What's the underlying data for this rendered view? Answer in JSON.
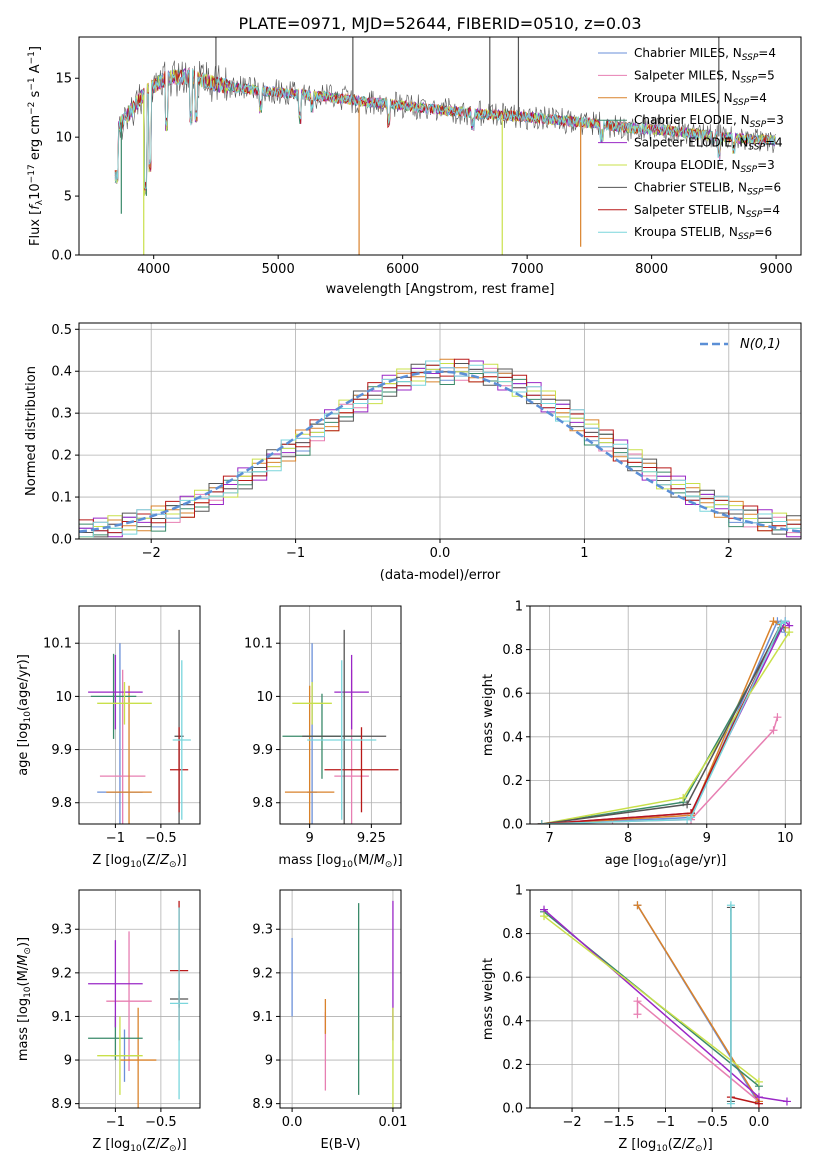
{
  "figure": {
    "title": "PLATE=0971, MJD=52644, FIBERID=0510, z=0.03"
  },
  "series_names": [
    "Chabrier MILES, N_SSP=4",
    "Salpeter MILES, N_SSP=5",
    "Kroupa MILES, N_SSP=4",
    "Chabrier ELODIE, N_SSP=3",
    "Salpeter ELODIE, N_SSP=4",
    "Kroupa ELODIE, N_SSP=3",
    "Chabrier STELIB, N_SSP=6",
    "Salpeter STELIB, N_SSP=4",
    "Kroupa STELIB, N_SSP=6"
  ],
  "colors": {
    "series": [
      "#6a8fd8",
      "#e77fb2",
      "#d9822b",
      "#3a8a6a",
      "#9a27c6",
      "#c9e04a",
      "#555555",
      "#b81818",
      "#7ad6dc"
    ],
    "gaussian": "#5b8fd6",
    "grid": "#b0b0b0"
  },
  "chart_data": [
    {
      "id": "spectrum",
      "type": "line",
      "title": "PLATE=0971, MJD=52644, FIBERID=0510, z=0.03",
      "xlabel": "wavelength [Angstrom, rest frame]",
      "ylabel": "Flux [f_λ10^-17 erg cm^-2 s^-1 A^-1]",
      "xlim": [
        3400,
        9200
      ],
      "ylim": [
        0,
        18.5
      ],
      "xticks": [
        4000,
        5000,
        6000,
        7000,
        8000,
        9000
      ],
      "yticks": [
        0,
        5,
        10,
        15
      ],
      "grid": false,
      "legend": "top-right",
      "legend_entries": [
        "Chabrier MILES, N_SSP=4",
        "Salpeter MILES, N_SSP=5",
        "Kroupa MILES, N_SSP=4",
        "Chabrier ELODIE, N_SSP=3",
        "Salpeter ELODIE, N_SSP=4",
        "Kroupa ELODIE, N_SSP=3",
        "Chabrier STELIB, N_SSP=6",
        "Salpeter STELIB, N_SSP=4",
        "Kroupa STELIB, N_SSP=6"
      ],
      "continuum": {
        "x": [
          3680,
          3800,
          3950,
          4100,
          4300,
          4500,
          4800,
          5100,
          5400,
          5700,
          6000,
          6300,
          6600,
          6900,
          7200,
          7500,
          7800,
          8100,
          8400,
          8700,
          9000
        ],
        "y": [
          10.5,
          12.0,
          14.0,
          15.0,
          15.2,
          14.5,
          14.0,
          13.7,
          13.4,
          13.0,
          12.7,
          12.3,
          12.0,
          11.8,
          11.5,
          11.2,
          10.8,
          10.6,
          10.2,
          9.9,
          9.7
        ]
      },
      "features": [
        {
          "x": 3700,
          "y": 6.0
        },
        {
          "x": 3935,
          "y": 5.0
        },
        {
          "x": 3970,
          "y": 7.0
        },
        {
          "x": 4101,
          "y": 10.5
        },
        {
          "x": 4300,
          "y": 11.0
        },
        {
          "x": 4340,
          "y": 11.2
        },
        {
          "x": 4861,
          "y": 12.0
        },
        {
          "x": 5175,
          "y": 11.0
        },
        {
          "x": 5270,
          "y": 12.0
        },
        {
          "x": 5890,
          "y": 10.8
        },
        {
          "x": 6563,
          "y": 10.5
        },
        {
          "x": 7600,
          "y": 9.5
        },
        {
          "x": 8500,
          "y": 8.8
        },
        {
          "x": 8542,
          "y": 8.0
        },
        {
          "x": 8662,
          "y": 8.5
        }
      ],
      "spikes": [
        {
          "x": 3920,
          "y": 0,
          "series": 5
        },
        {
          "x": 5650,
          "y": 0,
          "series": 2
        },
        {
          "x": 6800,
          "y": 0,
          "series": 5
        },
        {
          "x": 7430,
          "y": 0.7,
          "series": 2
        },
        {
          "x": 4500,
          "y": 18.5,
          "series": 6
        },
        {
          "x": 5600,
          "y": 18.5,
          "series": 6
        },
        {
          "x": 6700,
          "y": 18.5,
          "series": 6
        },
        {
          "x": 6930,
          "y": 18.5,
          "series": 6
        },
        {
          "x": 8540,
          "y": 18.5,
          "series": 6
        },
        {
          "x": 3740,
          "y": 3.5,
          "series": 3
        }
      ]
    },
    {
      "id": "residuals",
      "type": "histogram",
      "xlabel": "(data-model)/error",
      "ylabel": "Normed distribution",
      "xlim": [
        -2.5,
        2.5
      ],
      "ylim": [
        0,
        0.515
      ],
      "xticks": [
        -2,
        -1,
        0,
        1,
        2
      ],
      "yticks": [
        0.0,
        0.1,
        0.2,
        0.3,
        0.4,
        0.5
      ],
      "grid": true,
      "legend": "top-right",
      "legend_entry": "N(0,1)",
      "bin_edges_start": -2.5,
      "bin_width": 0.1,
      "series": [
        {
          "offsets": [
            0.01,
            0.0,
            -0.01,
            0.02,
            0.01,
            -0.02,
            0.0,
            0.01,
            -0.01,
            0.02
          ]
        },
        {
          "offsets": [
            0.0,
            0.02,
            0.01,
            -0.01,
            0.03,
            0.0,
            -0.02,
            0.01,
            0.02,
            -0.01
          ]
        },
        {
          "offsets": [
            -0.01,
            0.01,
            0.02,
            0.0,
            -0.02,
            0.03,
            0.01,
            -0.01,
            0.0,
            0.02
          ]
        },
        {
          "offsets": [
            0.02,
            -0.01,
            0.0,
            0.01,
            0.02,
            -0.03,
            0.02,
            0.0,
            -0.01,
            0.01
          ]
        },
        {
          "offsets": [
            0.01,
            0.03,
            -0.02,
            0.02,
            0.0,
            0.01,
            -0.01,
            0.03,
            0.01,
            -0.02
          ]
        },
        {
          "offsets": [
            -0.02,
            0.01,
            0.03,
            -0.01,
            0.01,
            0.02,
            0.0,
            -0.02,
            0.03,
            0.0
          ]
        },
        {
          "offsets": [
            0.0,
            -0.02,
            0.01,
            0.03,
            -0.01,
            0.0,
            0.02,
            0.01,
            -0.02,
            0.03
          ]
        },
        {
          "offsets": [
            0.03,
            0.0,
            -0.01,
            0.01,
            0.02,
            -0.01,
            0.03,
            -0.02,
            0.0,
            0.01
          ]
        },
        {
          "offsets": [
            -0.01,
            0.02,
            0.0,
            -0.02,
            0.03,
            0.01,
            -0.01,
            0.02,
            0.01,
            0.0
          ]
        }
      ]
    },
    {
      "id": "age-vs-Z",
      "type": "scatter",
      "xlabel": "Z [log10(Z/Z⊙)]",
      "ylabel": "age [log10(age/yr)]",
      "xlim": [
        -1.4,
        -0.07
      ],
      "ylim": [
        9.76,
        10.17
      ],
      "xticks": [
        -1.0,
        -0.5
      ],
      "yticks": [
        9.8,
        9.9,
        10.0,
        10.1
      ],
      "grid": true,
      "points": [
        {
          "x": -0.95,
          "y": 9.82,
          "xerr": 0.25,
          "yerr": 0.28
        },
        {
          "x": -0.92,
          "y": 9.85,
          "xerr": 0.25,
          "yerr": 0.2
        },
        {
          "x": -0.85,
          "y": 9.82,
          "xerr": 0.25,
          "yerr": 0.2
        },
        {
          "x": -1.02,
          "y": 10.0,
          "xerr": 0.25,
          "yerr": 0.08
        },
        {
          "x": -1.0,
          "y": 10.008,
          "xerr": 0.3,
          "yerr": 0.07
        },
        {
          "x": -0.9,
          "y": 9.987,
          "xerr": 0.3,
          "yerr": 0.04
        },
        {
          "x": -0.3,
          "y": 9.925,
          "xerr": 0.05,
          "yerr": 0.2
        },
        {
          "x": -0.3,
          "y": 9.862,
          "xerr": 0.1,
          "yerr": 0.08
        },
        {
          "x": -0.27,
          "y": 9.918,
          "xerr": 0.1,
          "yerr": 0.15
        }
      ]
    },
    {
      "id": "age-vs-mass",
      "type": "scatter",
      "xlabel": "mass [log10(M/M⊙)]",
      "ylabel": "",
      "xlim": [
        8.88,
        9.37
      ],
      "ylim": [
        9.76,
        10.17
      ],
      "xticks": [
        9.0,
        9.25
      ],
      "yticks": [
        9.8,
        9.9,
        10.0,
        10.1
      ],
      "grid": true,
      "points": [
        {
          "x": 9.01,
          "y": 9.82,
          "xerr": 0.02,
          "yerr": 0.28
        },
        {
          "x": 9.17,
          "y": 9.85,
          "xerr": 0.07,
          "yerr": 0.2
        },
        {
          "x": 9.0,
          "y": 9.82,
          "xerr": 0.1,
          "yerr": 0.2
        },
        {
          "x": 9.05,
          "y": 9.925,
          "xerr": 0.16,
          "yerr": 0.08
        },
        {
          "x": 9.17,
          "y": 10.008,
          "xerr": 0.07,
          "yerr": 0.07
        },
        {
          "x": 9.01,
          "y": 9.987,
          "xerr": 0.08,
          "yerr": 0.04
        },
        {
          "x": 9.14,
          "y": 9.925,
          "xerr": 0.17,
          "yerr": 0.2
        },
        {
          "x": 9.21,
          "y": 9.862,
          "xerr": 0.15,
          "yerr": 0.08
        },
        {
          "x": 9.13,
          "y": 9.918,
          "xerr": 0.14,
          "yerr": 0.15
        }
      ]
    },
    {
      "id": "weight-vs-age",
      "type": "line",
      "xlabel": "age [log10(age/yr)]",
      "ylabel": "mass weight",
      "xlim": [
        6.75,
        10.2
      ],
      "ylim": [
        0,
        1
      ],
      "xticks": [
        7,
        8,
        9,
        10
      ],
      "yticks": [
        0.0,
        0.2,
        0.4,
        0.6,
        0.8,
        1.0
      ],
      "grid": true,
      "series": [
        {
          "x": [
            6.9,
            8.8,
            9.9,
            10.0
          ],
          "y": [
            0.0,
            0.03,
            0.93,
            0.88
          ]
        },
        {
          "x": [
            6.9,
            7.8,
            8.8,
            9.85,
            9.9
          ],
          "y": [
            0.0,
            0.01,
            0.02,
            0.43,
            0.49
          ]
        },
        {
          "x": [
            6.9,
            8.8,
            9.85,
            10.0
          ],
          "y": [
            0.0,
            0.04,
            0.93,
            0.9
          ]
        },
        {
          "x": [
            6.9,
            8.7,
            9.95
          ],
          "y": [
            0.0,
            0.1,
            0.9
          ]
        },
        {
          "x": [
            6.9,
            8.8,
            10.0,
            10.05
          ],
          "y": [
            0.0,
            0.05,
            0.93,
            0.91
          ]
        },
        {
          "x": [
            6.9,
            8.7,
            10.05
          ],
          "y": [
            0.0,
            0.12,
            0.88
          ]
        },
        {
          "x": [
            6.9,
            8.75,
            9.95
          ],
          "y": [
            0.0,
            0.09,
            0.92
          ]
        },
        {
          "x": [
            6.9,
            8.8,
            9.95
          ],
          "y": [
            0.0,
            0.05,
            0.92
          ]
        },
        {
          "x": [
            6.9,
            8.75,
            8.8,
            9.95,
            10.0
          ],
          "y": [
            0.0,
            0.02,
            0.03,
            0.92,
            0.93
          ]
        }
      ]
    },
    {
      "id": "mass-vs-Z",
      "type": "scatter",
      "xlabel": "Z [log10(Z/Z⊙)]",
      "ylabel": "mass [log10(M/M⊙)]",
      "xlim": [
        -1.4,
        -0.07
      ],
      "ylim": [
        8.89,
        9.39
      ],
      "xticks": [
        -1.0,
        -0.5
      ],
      "yticks": [
        8.9,
        9.0,
        9.1,
        9.2,
        9.3
      ],
      "grid": true,
      "points": [
        {
          "x": -0.9,
          "y": 9.01,
          "xerr": 0.15,
          "yerr": 0.06
        },
        {
          "x": -0.85,
          "y": 9.135,
          "xerr": 0.25,
          "yerr": 0.16
        },
        {
          "x": -0.75,
          "y": 9.0,
          "xerr": 0.2,
          "yerr": 0.12
        },
        {
          "x": -1.0,
          "y": 9.05,
          "xerr": 0.3,
          "yerr": 0.05
        },
        {
          "x": -1.0,
          "y": 9.175,
          "xerr": 0.3,
          "yerr": 0.1
        },
        {
          "x": -0.95,
          "y": 9.01,
          "xerr": 0.25,
          "yerr": 0.09
        },
        {
          "x": -0.3,
          "y": 9.14,
          "xerr": 0.1,
          "yerr": 0.02
        },
        {
          "x": -0.3,
          "y": 9.205,
          "xerr": 0.1,
          "yerr": 0.16
        },
        {
          "x": -0.3,
          "y": 9.13,
          "xerr": 0.1,
          "yerr": 0.22
        }
      ]
    },
    {
      "id": "mass-vs-EBV",
      "type": "scatter",
      "xlabel": "E(B-V)",
      "ylabel": "",
      "xlim": [
        -0.0012,
        0.0108
      ],
      "ylim": [
        8.89,
        9.39
      ],
      "xticks": [
        0.0,
        0.01
      ],
      "yticks": [
        8.9,
        9.0,
        9.1,
        9.2,
        9.3
      ],
      "grid": true,
      "points": [
        {
          "x": 0.0,
          "y": 9.19,
          "yerr": 0.09
        },
        {
          "x": 0.0033,
          "y": 9.02,
          "yerr": 0.09
        },
        {
          "x": 0.0033,
          "y": 9.1,
          "yerr": 0.04
        },
        {
          "x": 0.0066,
          "y": 9.14,
          "yerr": 0.22
        },
        {
          "x": 0.01,
          "y": 9.205,
          "yerr": 0.16
        },
        {
          "x": 0.01,
          "y": 9.0,
          "yerr": 0.12
        }
      ]
    },
    {
      "id": "weight-vs-Z",
      "type": "line",
      "xlabel": "Z [log10(Z/Z⊙)]",
      "ylabel": "mass weight",
      "xlim": [
        -2.45,
        0.45
      ],
      "ylim": [
        0,
        1
      ],
      "xticks": [
        -2.0,
        -1.5,
        -1.0,
        -0.5,
        0.0
      ],
      "yticks": [
        0.0,
        0.2,
        0.4,
        0.6,
        0.8,
        1.0
      ],
      "grid": true,
      "series": [
        {
          "x": [
            -1.3,
            0.0
          ],
          "y": [
            0.93,
            0.02
          ]
        },
        {
          "x": [
            -1.3,
            -1.3,
            0.0
          ],
          "y": [
            0.43,
            0.49,
            0.03
          ]
        },
        {
          "x": [
            -1.3,
            0.0
          ],
          "y": [
            0.93,
            0.03
          ]
        },
        {
          "x": [
            -2.3,
            0.0
          ],
          "y": [
            0.9,
            0.1
          ]
        },
        {
          "x": [
            -2.3,
            0.0,
            0.3
          ],
          "y": [
            0.91,
            0.05,
            0.03
          ]
        },
        {
          "x": [
            -2.3,
            0.0
          ],
          "y": [
            0.88,
            0.12
          ]
        },
        {
          "x": [
            -0.3,
            -0.3
          ],
          "y": [
            0.92,
            0.03
          ]
        },
        {
          "x": [
            -0.3,
            0.0
          ],
          "y": [
            0.05,
            0.02
          ]
        },
        {
          "x": [
            -0.3,
            -0.3
          ],
          "y": [
            0.93,
            0.02
          ]
        }
      ]
    }
  ]
}
